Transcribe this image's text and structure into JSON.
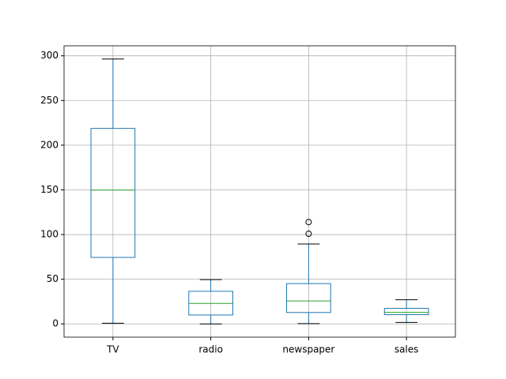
{
  "chart_data": {
    "type": "box",
    "categories": [
      "TV",
      "radio",
      "newspaper",
      "sales"
    ],
    "boxes": [
      {
        "whislo": 0.7,
        "q1": 74.4,
        "med": 149.75,
        "q3": 218.8,
        "whishi": 296.4,
        "fliers": []
      },
      {
        "whislo": 0,
        "q1": 9.975,
        "med": 22.9,
        "q3": 36.525,
        "whishi": 49.6,
        "fliers": []
      },
      {
        "whislo": 0.3,
        "q1": 12.75,
        "med": 25.75,
        "q3": 45.1,
        "whishi": 89.4,
        "fliers": [
          100.9,
          114
        ]
      },
      {
        "whislo": 1.6,
        "q1": 10.375,
        "med": 12.9,
        "q3": 17.4,
        "whishi": 27,
        "fliers": []
      }
    ],
    "box_color": "#1f77b4",
    "median_color": "#2ca02c",
    "cap_color": "#000000",
    "ylim": [
      -14.82,
      311.22
    ],
    "yticks": [
      0,
      50,
      100,
      150,
      200,
      250,
      300
    ],
    "grid": true
  }
}
